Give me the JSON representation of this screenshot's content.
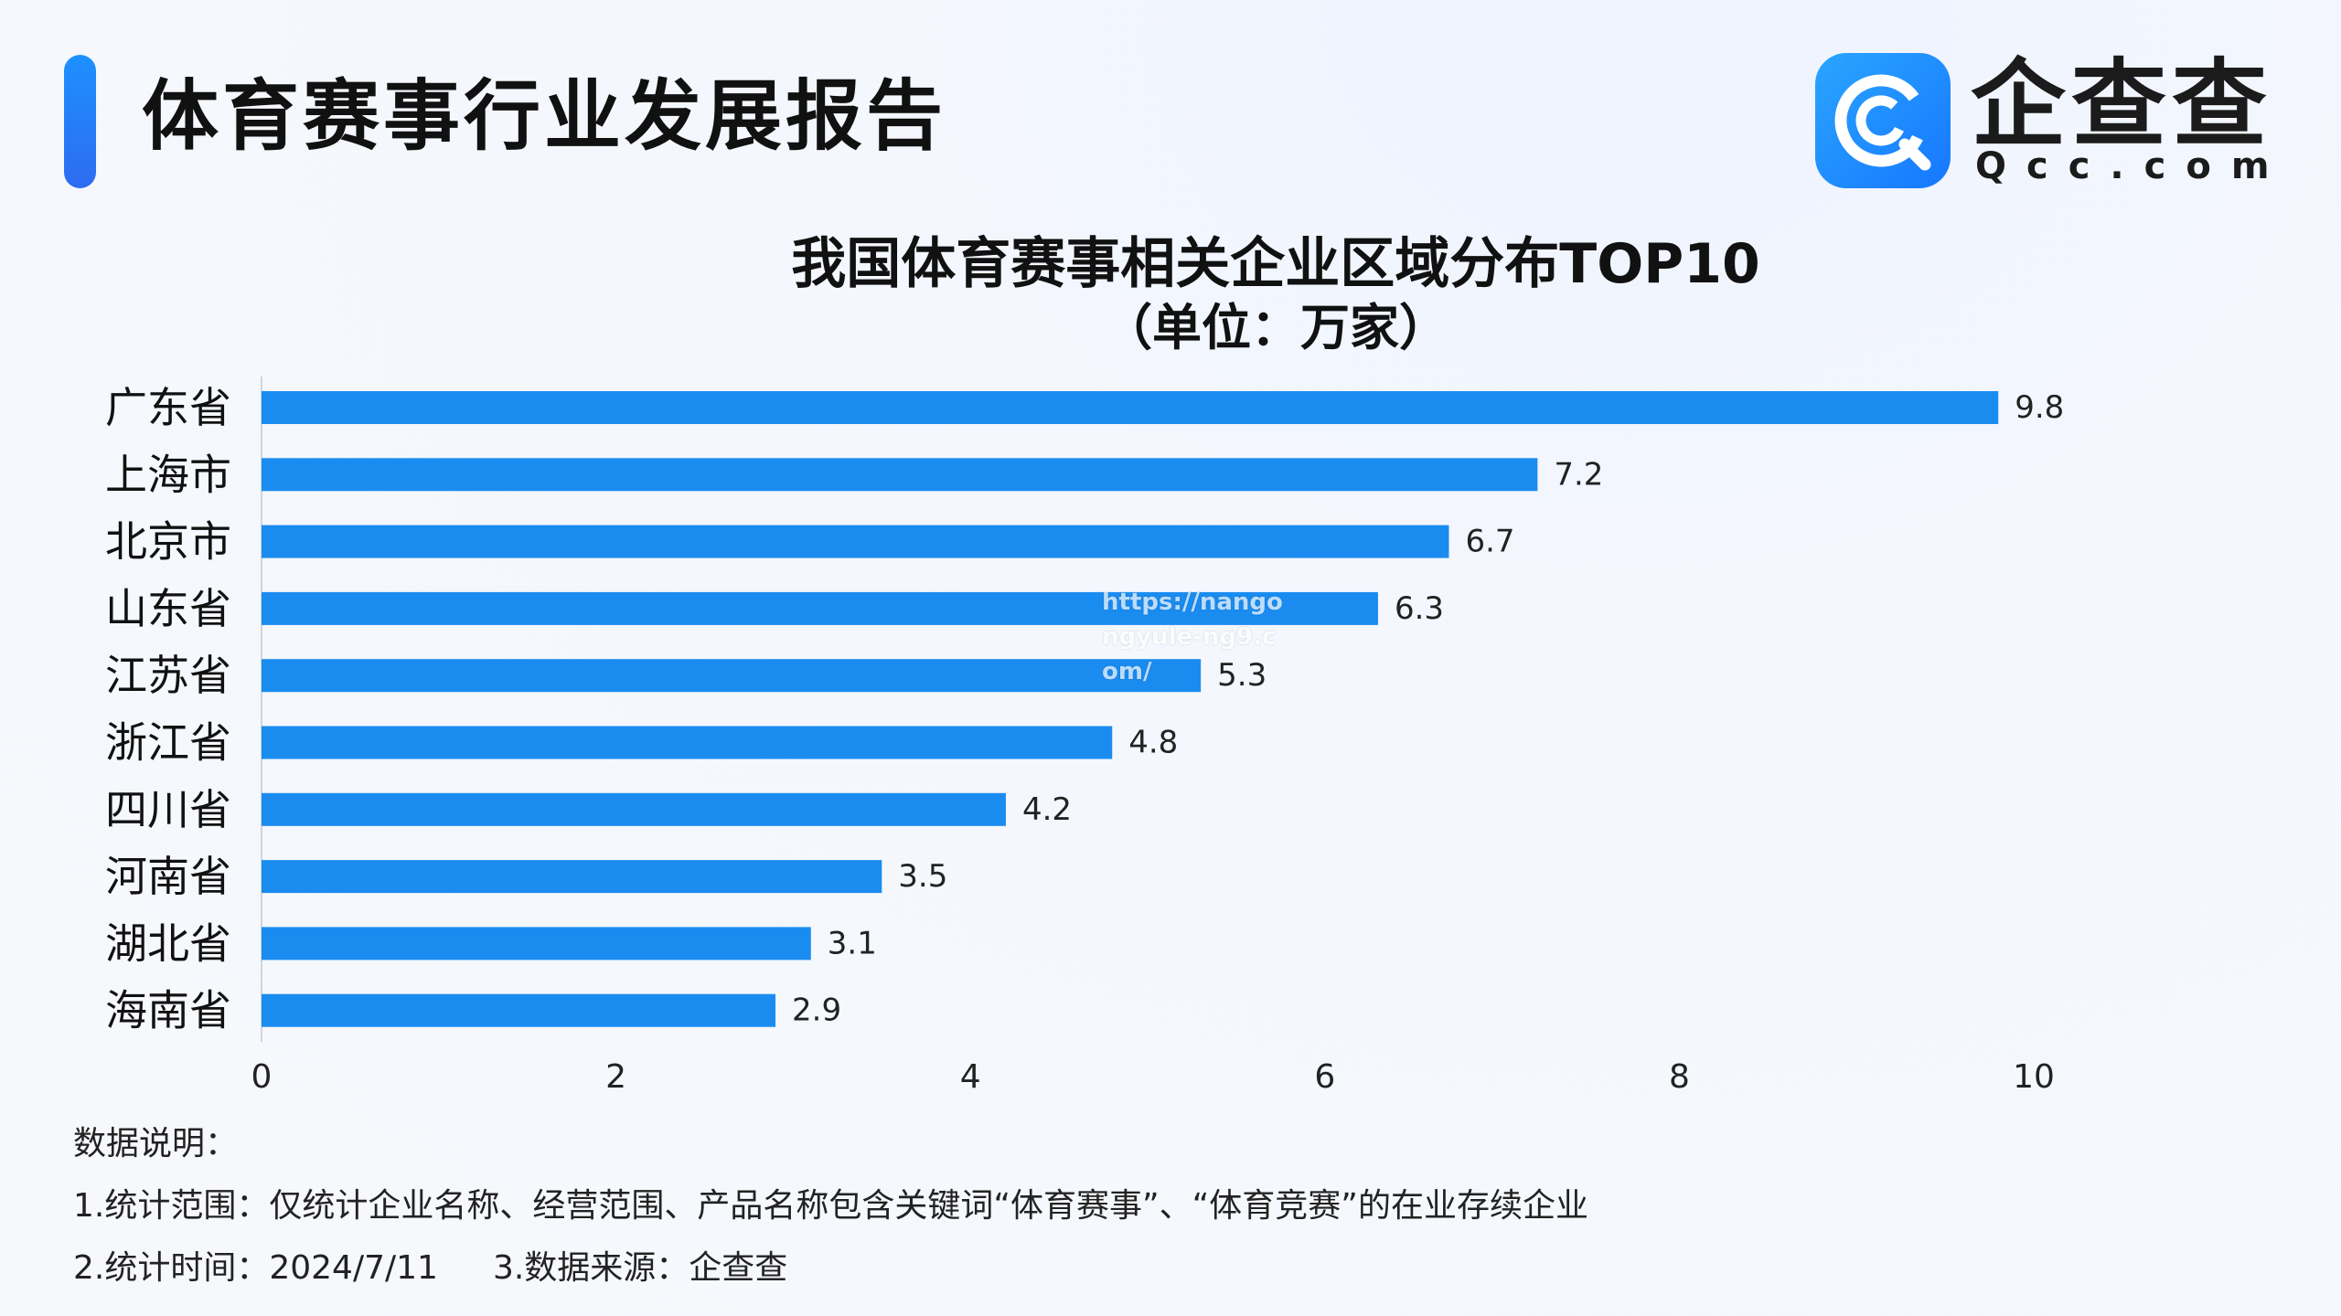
{
  "header": {
    "title": "体育赛事行业发展报告"
  },
  "logo": {
    "name": "企查查",
    "domain": "Qcc.com",
    "color": "#1677ff"
  },
  "watermark": "https://nangongyule-ng9.com/",
  "chart_data": {
    "type": "bar",
    "orientation": "horizontal",
    "title": "我国体育赛事相关企业区域分布TOP10",
    "subtitle": "（单位：万家）",
    "categories": [
      "广东省",
      "上海市",
      "北京市",
      "山东省",
      "江苏省",
      "浙江省",
      "四川省",
      "河南省",
      "湖北省",
      "海南省"
    ],
    "values": [
      9.8,
      7.2,
      6.7,
      6.3,
      5.3,
      4.8,
      4.2,
      3.5,
      3.1,
      2.9
    ],
    "value_labels": [
      "9.8",
      "7.2",
      "6.7",
      "6.3",
      "5.3",
      "4.8",
      "4.2",
      "3.5",
      "3.1",
      "2.9"
    ],
    "xlim": [
      0,
      10
    ],
    "xticks": [
      "0",
      "2",
      "4",
      "6",
      "8",
      "10"
    ],
    "grid": false,
    "bar_color": "#1a8cf0"
  },
  "notes": {
    "heading": "数据说明：",
    "scope": "1.统计范围：仅统计企业名称、经营范围、产品名称包含关键词“体育赛事”、“体育竞赛”的在业存续企业",
    "time": "2.统计时间：2024/7/11",
    "source": "3.数据来源：企查查"
  }
}
